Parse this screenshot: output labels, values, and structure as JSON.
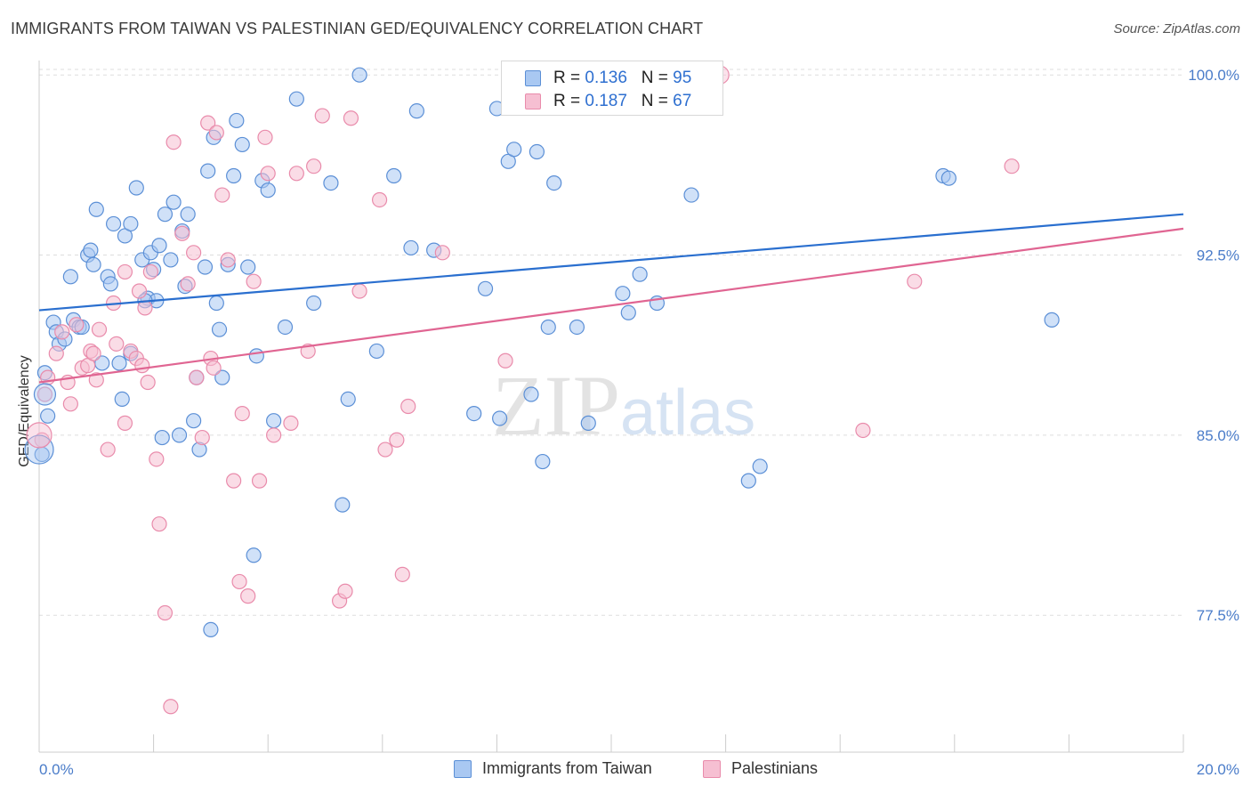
{
  "title": "IMMIGRANTS FROM TAIWAN VS PALESTINIAN GED/EQUIVALENCY CORRELATION CHART",
  "source": "Source: ZipAtlas.com",
  "watermark": {
    "zip": "ZIP",
    "atlas": "atlas"
  },
  "legend": {
    "rows": [
      {
        "r_label": "R = ",
        "r_value": "0.136",
        "n_label": "N = ",
        "n_value": "95"
      },
      {
        "r_label": "R = ",
        "r_value": "0.187",
        "n_label": "N = ",
        "n_value": "67"
      }
    ]
  },
  "colors": {
    "blue_fill": "#a9c8f2",
    "blue_stroke": "#5b8fd6",
    "blue_line": "#2a6fcf",
    "pink_fill": "#f6bfd2",
    "pink_stroke": "#e98bab",
    "pink_line": "#e06592",
    "grid": "#dddddd",
    "axis_label": "#4a7cc9"
  },
  "chart_data": {
    "type": "scatter",
    "xlabel": "",
    "ylabel": "GED/Equivalency",
    "xlim": [
      0,
      20
    ],
    "ylim": [
      71.8,
      100.6
    ],
    "x_tick_labels": [
      "0.0%",
      "20.0%"
    ],
    "y_ticks": [
      77.5,
      85.0,
      92.5,
      100.0
    ],
    "y_tick_labels": [
      "77.5%",
      "85.0%",
      "92.5%",
      "100.0%"
    ],
    "grid": true,
    "series": [
      {
        "name": "Immigrants from Taiwan",
        "color": "#a9c8f2",
        "trend": {
          "x": [
            0,
            20
          ],
          "y": [
            90.2,
            94.2
          ]
        },
        "points": [
          [
            0.05,
            84.2
          ],
          [
            0.1,
            87.6
          ],
          [
            0.15,
            85.8
          ],
          [
            0.25,
            89.7
          ],
          [
            0.3,
            89.3
          ],
          [
            0.35,
            88.8
          ],
          [
            0.45,
            89.0
          ],
          [
            0.55,
            91.6
          ],
          [
            0.6,
            89.8
          ],
          [
            0.7,
            89.5
          ],
          [
            0.85,
            92.5
          ],
          [
            0.9,
            92.7
          ],
          [
            0.95,
            92.1
          ],
          [
            1.0,
            94.4
          ],
          [
            1.1,
            88.0
          ],
          [
            1.2,
            91.6
          ],
          [
            1.25,
            91.3
          ],
          [
            1.3,
            93.8
          ],
          [
            1.4,
            88.0
          ],
          [
            1.45,
            86.5
          ],
          [
            1.5,
            93.3
          ],
          [
            1.6,
            88.4
          ],
          [
            1.6,
            93.8
          ],
          [
            1.7,
            95.3
          ],
          [
            1.8,
            92.3
          ],
          [
            1.9,
            90.7
          ],
          [
            1.95,
            92.6
          ],
          [
            2.0,
            91.9
          ],
          [
            2.05,
            90.6
          ],
          [
            2.1,
            92.9
          ],
          [
            2.2,
            94.2
          ],
          [
            2.3,
            92.3
          ],
          [
            2.35,
            94.7
          ],
          [
            2.45,
            85.0
          ],
          [
            2.5,
            93.5
          ],
          [
            2.55,
            91.2
          ],
          [
            2.6,
            94.2
          ],
          [
            2.7,
            85.6
          ],
          [
            2.75,
            87.4
          ],
          [
            2.8,
            84.4
          ],
          [
            2.9,
            92.0
          ],
          [
            2.95,
            96.0
          ],
          [
            3.0,
            76.9
          ],
          [
            3.05,
            97.4
          ],
          [
            3.15,
            89.4
          ],
          [
            3.2,
            87.4
          ],
          [
            3.3,
            92.1
          ],
          [
            3.4,
            95.8
          ],
          [
            3.45,
            98.1
          ],
          [
            3.55,
            97.1
          ],
          [
            3.65,
            92.0
          ],
          [
            3.75,
            80.0
          ],
          [
            3.8,
            88.3
          ],
          [
            3.9,
            95.6
          ],
          [
            4.0,
            95.2
          ],
          [
            4.1,
            85.6
          ],
          [
            4.5,
            99.0
          ],
          [
            4.8,
            90.5
          ],
          [
            5.1,
            95.5
          ],
          [
            5.3,
            82.1
          ],
          [
            5.4,
            86.5
          ],
          [
            5.6,
            100.0
          ],
          [
            5.9,
            88.5
          ],
          [
            6.2,
            95.8
          ],
          [
            6.5,
            92.8
          ],
          [
            6.6,
            98.5
          ],
          [
            6.9,
            92.7
          ],
          [
            7.6,
            85.9
          ],
          [
            7.8,
            91.1
          ],
          [
            8.0,
            98.6
          ],
          [
            8.05,
            85.7
          ],
          [
            8.2,
            96.4
          ],
          [
            8.3,
            96.9
          ],
          [
            8.6,
            86.7
          ],
          [
            8.7,
            96.8
          ],
          [
            8.8,
            83.9
          ],
          [
            8.9,
            89.5
          ],
          [
            9.0,
            95.5
          ],
          [
            9.4,
            89.5
          ],
          [
            9.6,
            85.5
          ],
          [
            10.2,
            90.9
          ],
          [
            10.3,
            90.1
          ],
          [
            10.5,
            91.7
          ],
          [
            10.8,
            90.5
          ],
          [
            11.4,
            95.0
          ],
          [
            12.4,
            83.1
          ],
          [
            12.6,
            83.7
          ],
          [
            15.8,
            95.8
          ],
          [
            15.9,
            95.7
          ],
          [
            17.7,
            89.8
          ],
          [
            0.75,
            89.5
          ],
          [
            1.85,
            90.6
          ],
          [
            2.15,
            84.9
          ],
          [
            3.1,
            90.5
          ],
          [
            4.3,
            89.5
          ]
        ]
      },
      {
        "name": "Palestinians",
        "color": "#f6bfd2",
        "trend": {
          "x": [
            0,
            20
          ],
          "y": [
            87.2,
            93.6
          ]
        },
        "points": [
          [
            0.05,
            84.8
          ],
          [
            0.1,
            86.7
          ],
          [
            0.15,
            87.4
          ],
          [
            0.3,
            88.4
          ],
          [
            0.4,
            89.3
          ],
          [
            0.5,
            87.2
          ],
          [
            0.55,
            86.3
          ],
          [
            0.65,
            89.6
          ],
          [
            0.75,
            87.8
          ],
          [
            0.85,
            87.9
          ],
          [
            0.9,
            88.5
          ],
          [
            0.95,
            88.4
          ],
          [
            1.0,
            87.3
          ],
          [
            1.05,
            89.4
          ],
          [
            1.2,
            84.4
          ],
          [
            1.3,
            90.5
          ],
          [
            1.35,
            88.8
          ],
          [
            1.5,
            91.8
          ],
          [
            1.5,
            85.5
          ],
          [
            1.6,
            88.5
          ],
          [
            1.7,
            88.2
          ],
          [
            1.75,
            91.0
          ],
          [
            1.8,
            87.9
          ],
          [
            1.85,
            90.3
          ],
          [
            1.9,
            87.2
          ],
          [
            1.95,
            91.8
          ],
          [
            2.05,
            84.0
          ],
          [
            2.1,
            81.3
          ],
          [
            2.2,
            77.6
          ],
          [
            2.3,
            73.7
          ],
          [
            2.35,
            97.2
          ],
          [
            2.5,
            93.4
          ],
          [
            2.6,
            91.3
          ],
          [
            2.7,
            92.6
          ],
          [
            2.75,
            87.4
          ],
          [
            2.85,
            84.9
          ],
          [
            2.95,
            98.0
          ],
          [
            3.0,
            88.2
          ],
          [
            3.05,
            87.8
          ],
          [
            3.1,
            97.6
          ],
          [
            3.2,
            95.0
          ],
          [
            3.3,
            92.3
          ],
          [
            3.4,
            83.1
          ],
          [
            3.5,
            78.9
          ],
          [
            3.55,
            85.9
          ],
          [
            3.65,
            78.3
          ],
          [
            3.75,
            91.4
          ],
          [
            3.85,
            83.1
          ],
          [
            3.95,
            97.4
          ],
          [
            4.0,
            95.9
          ],
          [
            4.1,
            85.0
          ],
          [
            4.4,
            85.5
          ],
          [
            4.5,
            95.9
          ],
          [
            4.7,
            88.5
          ],
          [
            4.8,
            96.2
          ],
          [
            4.95,
            98.3
          ],
          [
            5.25,
            78.1
          ],
          [
            5.35,
            78.5
          ],
          [
            5.45,
            98.2
          ],
          [
            5.6,
            91.0
          ],
          [
            5.95,
            94.8
          ],
          [
            6.05,
            84.4
          ],
          [
            6.25,
            84.8
          ],
          [
            6.35,
            79.2
          ],
          [
            6.45,
            86.2
          ],
          [
            7.05,
            92.6
          ],
          [
            8.15,
            88.1
          ]
        ]
      }
    ],
    "extra_points_right": [
      [
        14.4,
        85.2
      ],
      [
        15.3,
        91.4
      ],
      [
        17.0,
        96.2
      ]
    ]
  },
  "bottom_legend": {
    "items": [
      {
        "label": "Immigrants from Taiwan"
      },
      {
        "label": "Palestinians"
      }
    ]
  }
}
